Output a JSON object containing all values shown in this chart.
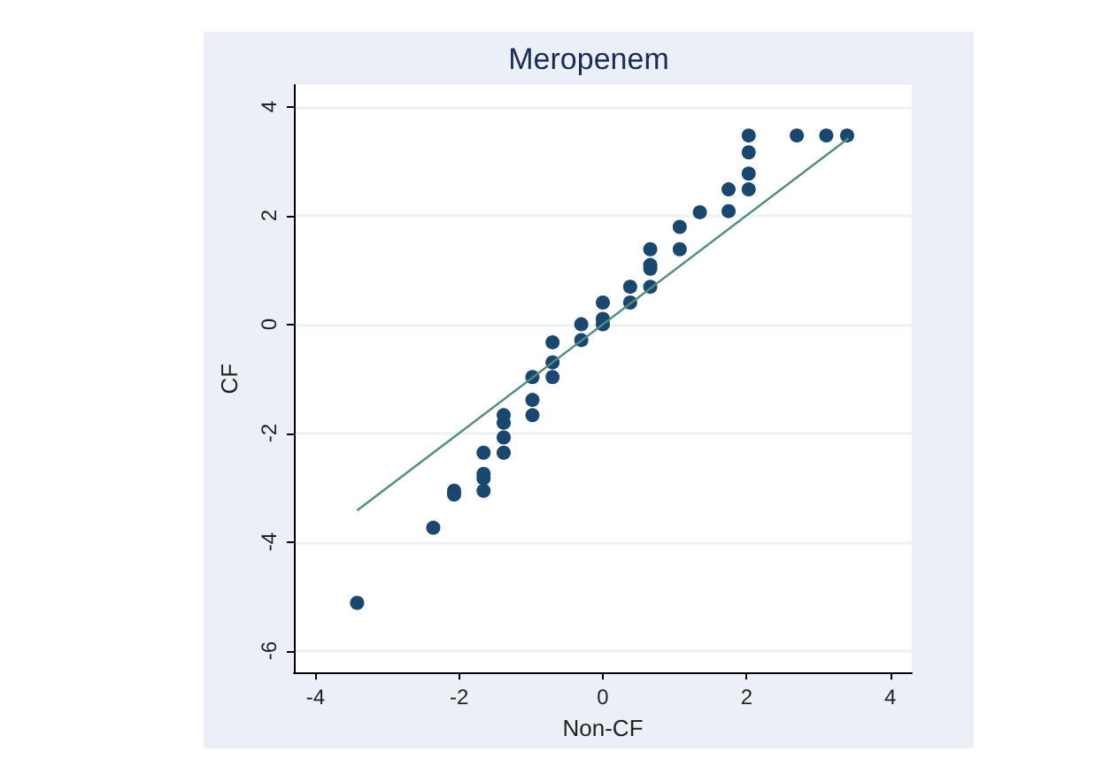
{
  "chart_data": {
    "type": "scatter",
    "title": "Meropenem",
    "xlabel": "Non-CF",
    "ylabel": "CF",
    "xlim": [
      -4.3,
      4.3
    ],
    "ylim": [
      -6.4,
      4.4
    ],
    "xticks": [
      -4,
      -2,
      0,
      2,
      4
    ],
    "yticks": [
      -6,
      -4,
      -2,
      0,
      2,
      4
    ],
    "grid": "y",
    "marker": "circle",
    "series": [
      {
        "color": "#1a476f",
        "x": [
          -3.42,
          -2.36,
          -2.07,
          -2.07,
          -1.66,
          -1.66,
          -1.66,
          -1.66,
          -1.38,
          -1.38,
          -1.38,
          -1.38,
          -0.98,
          -0.98,
          -0.98,
          -0.7,
          -0.7,
          -0.7,
          -0.3,
          -0.3,
          0,
          0,
          0,
          0.38,
          0.38,
          0.66,
          0.66,
          0.66,
          0.66,
          1.07,
          1.07,
          1.35,
          1.75,
          1.75,
          2.03,
          2.03,
          2.03,
          2.03,
          2.7,
          3.11,
          3.4
        ],
        "values": [
          -5.12,
          -3.74,
          -3.13,
          -3.06,
          -3.06,
          -2.83,
          -2.75,
          -2.36,
          -2.36,
          -2.08,
          -1.81,
          -1.67,
          -1.67,
          -1.39,
          -0.97,
          -0.97,
          -0.7,
          -0.33,
          -0.29,
          0,
          0,
          0.1,
          0.4,
          0.4,
          0.69,
          0.69,
          1.02,
          1.09,
          1.38,
          1.38,
          1.79,
          2.06,
          2.08,
          2.48,
          2.48,
          2.77,
          3.16,
          3.47,
          3.47,
          3.47,
          3.47
        ]
      },
      {
        "type": "line",
        "color": "#4e8c7c",
        "marker": "none",
        "x": [
          -3.42,
          3.42
        ],
        "values": [
          -3.42,
          3.42
        ]
      }
    ]
  }
}
